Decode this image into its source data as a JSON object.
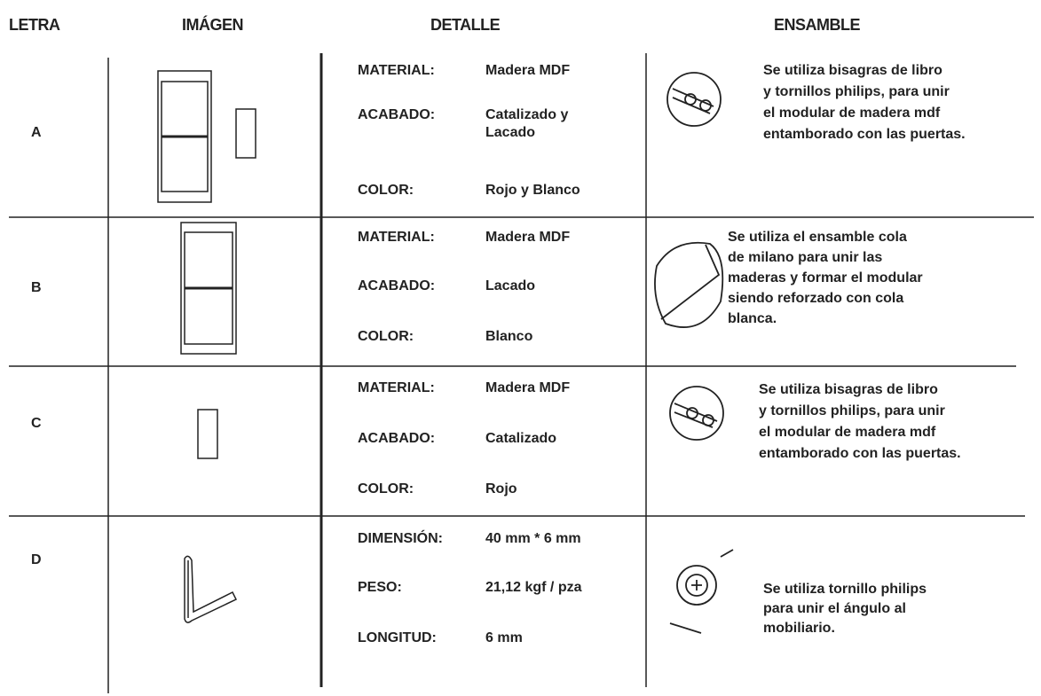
{
  "header": [
    "LETRA",
    "IMÁGEN",
    "DETALLE",
    "ENSAMBLE"
  ],
  "rows": [
    {
      "letter": "A",
      "details": [
        [
          "MATERIAL:",
          "Madera MDF"
        ],
        [
          "ACABADO:",
          "Catalizado y Lacado"
        ],
        [
          "COLOR:",
          "Rojo y Blanco"
        ]
      ],
      "assembly": [
        "Se utiliza bisagras de libro",
        "y tornillos philips, para unir",
        "el modular de madera mdf",
        "entamborado con las puertas."
      ]
    },
    {
      "letter": "B",
      "details": [
        [
          "MATERIAL:",
          "Madera MDF"
        ],
        [
          "ACABADO:",
          "Lacado"
        ],
        [
          "COLOR:",
          "Blanco"
        ]
      ],
      "assembly": [
        "Se utiliza el ensamble cola",
        "de milano para unir las",
        "maderas y formar el modular",
        "siendo reforzado con cola",
        "blanca."
      ]
    },
    {
      "letter": "C",
      "details": [
        [
          "MATERIAL:",
          "Madera MDF"
        ],
        [
          "ACABADO:",
          "Catalizado"
        ],
        [
          "COLOR:",
          "Rojo"
        ]
      ],
      "assembly": [
        "Se utiliza bisagras de libro",
        "y tornillos philips, para unir",
        "el modular de madera mdf",
        "entamborado con las puertas."
      ]
    },
    {
      "letter": "D",
      "details": [
        [
          "DIMENSIÓN:",
          "40 mm * 6 mm"
        ],
        [
          "PESO:",
          "21,12 kgf / pza"
        ],
        [
          "LONGITUD:",
          "6 mm"
        ]
      ],
      "assembly": [
        "Se utiliza tornillo philips",
        "para unir el ángulo al",
        "mobiliario."
      ]
    }
  ]
}
